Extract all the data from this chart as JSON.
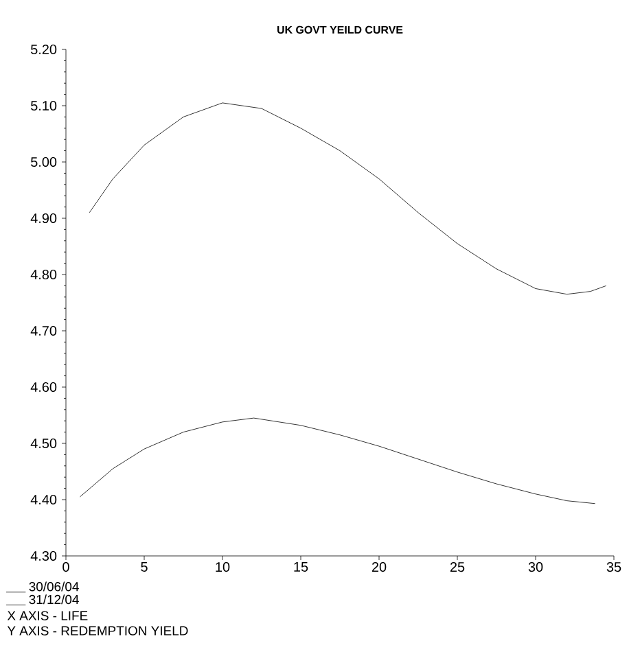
{
  "chart_data": {
    "type": "line",
    "title": "UK GOVT YEILD CURVE",
    "annotations": [
      "X AXIS - LIFE",
      "Y AXIS - REDEMPTION YIELD"
    ],
    "xlim": [
      0,
      35
    ],
    "xticks": [
      0,
      5,
      10,
      15,
      20,
      25,
      30,
      35
    ],
    "ylim": [
      4.3,
      5.2
    ],
    "yticks": [
      {
        "value": 4.3,
        "label": "4.30"
      },
      {
        "value": 4.4,
        "label": "4.40"
      },
      {
        "value": 4.5,
        "label": "4.50"
      },
      {
        "value": 4.6,
        "label": "4.60"
      },
      {
        "value": 4.7,
        "label": "4.70"
      },
      {
        "value": 4.8,
        "label": "4.80"
      },
      {
        "value": 4.9,
        "label": "4.90"
      },
      {
        "value": 5.0,
        "label": "5.00"
      },
      {
        "value": 5.1,
        "label": "5.10"
      },
      {
        "value": 5.2,
        "label": "5.20"
      }
    ],
    "legend": "bottom left",
    "grid": false,
    "marker": "none",
    "line_style": "solid",
    "series": [
      {
        "name": "30/06/04",
        "color": "#000000",
        "x": [
          1.5,
          3,
          5,
          7.5,
          10,
          12.5,
          15,
          17.5,
          20,
          22.5,
          25,
          27.5,
          30,
          32,
          33.5,
          34.5
        ],
        "values": [
          4.91,
          4.97,
          5.03,
          5.08,
          5.105,
          5.095,
          5.06,
          5.02,
          4.97,
          4.91,
          4.855,
          4.81,
          4.775,
          4.765,
          4.77,
          4.78
        ]
      },
      {
        "name": "31/12/04",
        "color": "#000000",
        "x": [
          0.9,
          3,
          5,
          7.5,
          10,
          12,
          15,
          17.5,
          20,
          22.5,
          25,
          27.5,
          30,
          32,
          33.8
        ],
        "values": [
          4.405,
          4.455,
          4.49,
          4.52,
          4.538,
          4.545,
          4.532,
          4.515,
          4.495,
          4.472,
          4.449,
          4.428,
          4.41,
          4.398,
          4.393
        ]
      }
    ]
  }
}
